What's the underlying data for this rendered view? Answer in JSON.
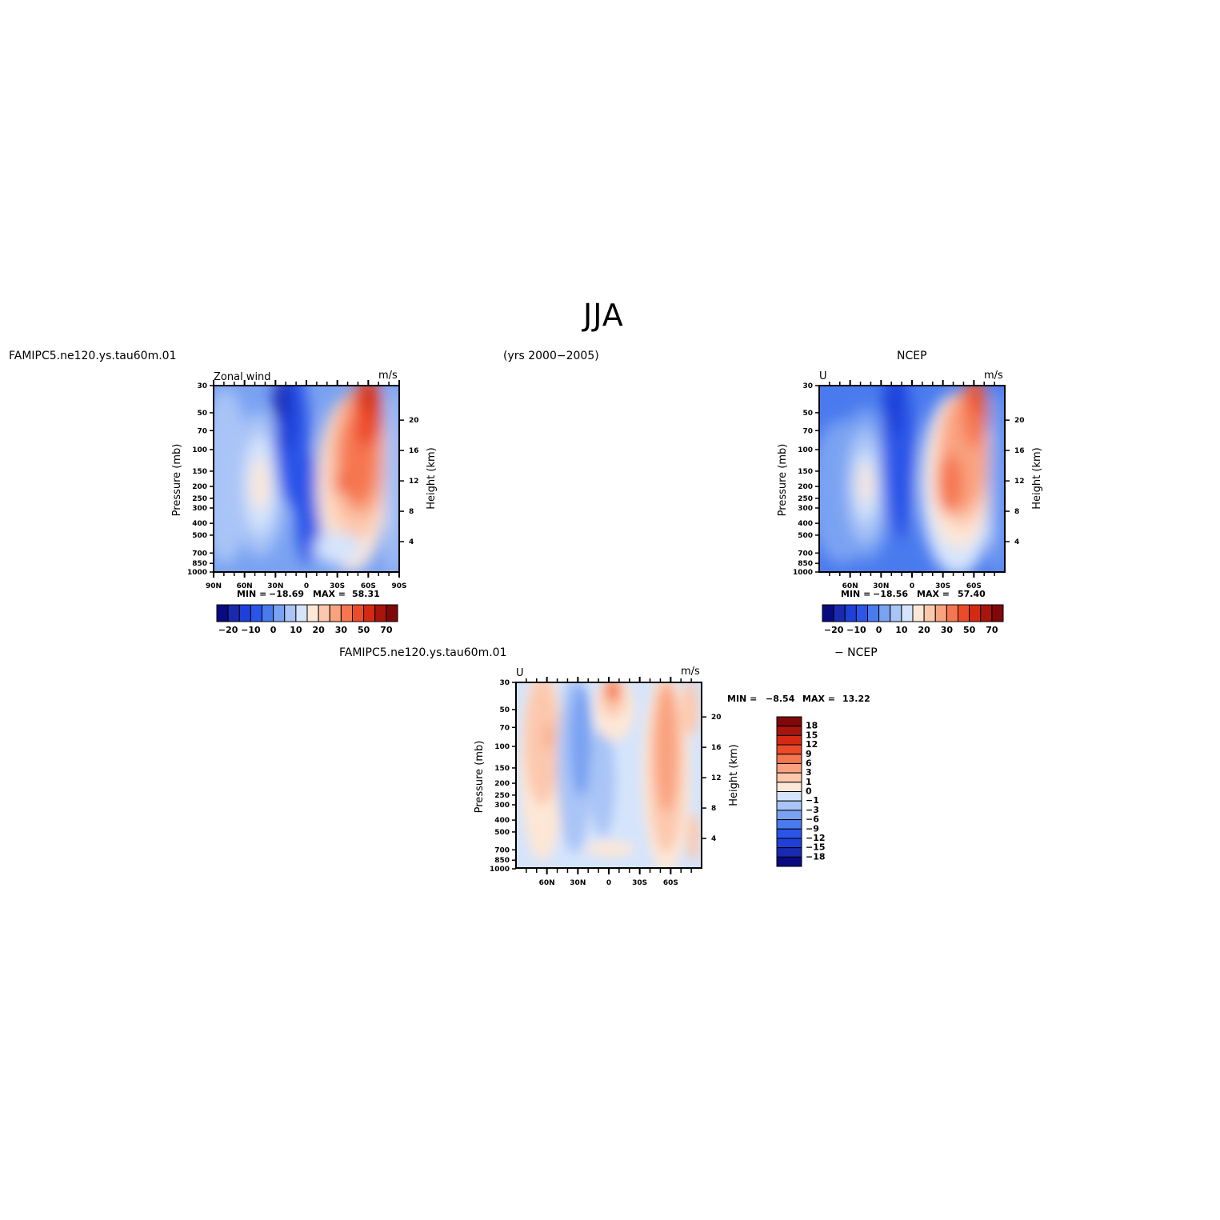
{
  "figure": {
    "title": "JJA",
    "case_name": "FAMIPC5.ne120.ys.tau60m.01",
    "years": "(yrs 2000−2005)",
    "obs_name": "NCEP",
    "diff_case_name": "FAMIPC5.ne120.ys.tau60m.01",
    "diff_obs_name": "− NCEP"
  },
  "panels": {
    "model": {
      "left_label": "Zonal wind",
      "right_label": "m/s",
      "ylabel": "Pressure (mb)",
      "ylabel_right": "Height (km)",
      "min_label": "MIN =",
      "min_value": "−18.69",
      "max_label": "MAX =",
      "max_value": "58.31"
    },
    "obs": {
      "left_label": "U",
      "right_label": "m/s",
      "ylabel": "Pressure (mb)",
      "ylabel_right": "Height (km)",
      "min_label": "MIN =",
      "min_value": "−18.56",
      "max_label": "MAX =",
      "max_value": "57.40"
    },
    "diff": {
      "left_label": "U",
      "right_label": "m/s",
      "ylabel": "Pressure (mb)",
      "ylabel_right": "Height (km)",
      "min_label": "MIN =",
      "min_value": "−8.54",
      "max_label": "MAX =",
      "max_value": "13.22"
    }
  },
  "colors": {
    "seq_levels": [
      "#0a0a80",
      "#1a2ab0",
      "#1e40d8",
      "#2a55e8",
      "#4a7bee",
      "#7aa2f2",
      "#a9c4f6",
      "#d5e4fb",
      "#fde7d6",
      "#fcc8ad",
      "#f9a27f",
      "#f5764f",
      "#ec4b2a",
      "#d42a14",
      "#a8150c",
      "#800808"
    ],
    "diff_levels": [
      "#0a0a80",
      "#1a2ab0",
      "#1e40d8",
      "#2a55e8",
      "#4a7bee",
      "#7aa2f2",
      "#a9c4f6",
      "#d5e4fb",
      "#fde7d6",
      "#fcc8ad",
      "#f9a27f",
      "#f5764f",
      "#ec4b2a",
      "#d42a14",
      "#a8150c",
      "#800808"
    ]
  },
  "chart_data": [
    {
      "type": "heatmap",
      "name": "model",
      "xlabel": "",
      "ylabel": "Pressure (mb)",
      "ylabel_right": "Height (km)",
      "x_ticks": [
        "90N",
        "60N",
        "30N",
        "0",
        "30S",
        "60S",
        "90S"
      ],
      "y_ticks": [
        "30",
        "50",
        "70",
        "100",
        "150",
        "200",
        "250",
        "300",
        "400",
        "500",
        "700",
        "850",
        "1000"
      ],
      "y_ticks_right": [
        "4",
        "8",
        "12",
        "16",
        "20"
      ],
      "colorbar_ticks": [
        "−20",
        "−10",
        "0",
        "10",
        "20",
        "30",
        "50",
        "70"
      ],
      "min": -18.69,
      "max": 58.31
    },
    {
      "type": "heatmap",
      "name": "obs",
      "xlabel": "",
      "ylabel": "Pressure (mb)",
      "ylabel_right": "Height (km)",
      "x_ticks": [
        "60N",
        "30N",
        "0",
        "30S",
        "60S"
      ],
      "y_ticks": [
        "30",
        "50",
        "70",
        "100",
        "150",
        "200",
        "250",
        "300",
        "400",
        "500",
        "700",
        "850",
        "1000"
      ],
      "y_ticks_right": [
        "4",
        "8",
        "12",
        "16",
        "20"
      ],
      "colorbar_ticks": [
        "−20",
        "−10",
        "0",
        "10",
        "20",
        "30",
        "50",
        "70"
      ],
      "min": -18.56,
      "max": 57.4
    },
    {
      "type": "heatmap",
      "name": "diff",
      "xlabel": "",
      "ylabel": "Pressure (mb)",
      "ylabel_right": "Height (km)",
      "x_ticks": [
        "60N",
        "30N",
        "0",
        "30S",
        "60S"
      ],
      "y_ticks": [
        "30",
        "50",
        "70",
        "100",
        "150",
        "200",
        "250",
        "300",
        "400",
        "500",
        "700",
        "850",
        "1000"
      ],
      "y_ticks_right": [
        "4",
        "8",
        "12",
        "16",
        "20"
      ],
      "colorbar_ticks": [
        "18",
        "15",
        "12",
        "9",
        "6",
        "3",
        "1",
        "0",
        "−1",
        "−3",
        "−6",
        "−9",
        "−12",
        "−15",
        "−18"
      ],
      "min": -8.54,
      "max": 13.22
    }
  ]
}
